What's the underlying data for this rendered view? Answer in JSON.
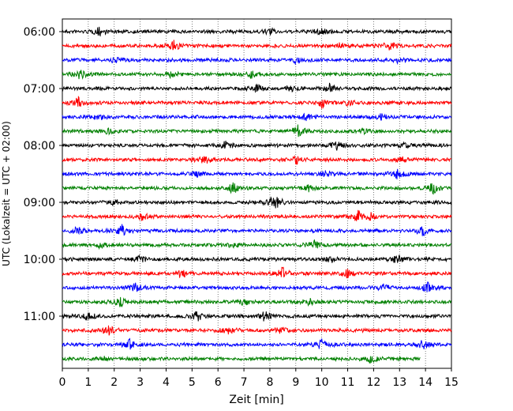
{
  "chart_data": {
    "type": "line",
    "title": "",
    "xlabel": "Zeit  [min]",
    "ylabel": "UTC (Lokalzeit = UTC + 02:00)",
    "xlim": [
      0,
      15
    ],
    "x_ticks": [
      0,
      1,
      2,
      3,
      4,
      5,
      6,
      7,
      8,
      9,
      10,
      11,
      12,
      13,
      14,
      15
    ],
    "y_tick_labels": [
      "06:00",
      "07:00",
      "08:00",
      "09:00",
      "10:00",
      "11:00"
    ],
    "grid": "vertical-dotted",
    "trace_interval_minutes": 15,
    "trace_end_minutes_last": 13.8,
    "colors": [
      "#000000",
      "#ff0000",
      "#0000ff",
      "#008000"
    ],
    "series": [
      {
        "start": "06:00",
        "color": "#000000",
        "events": [
          [
            1.4,
            0.6
          ],
          [
            8.0,
            0.5
          ],
          [
            10.0,
            0.6
          ]
        ]
      },
      {
        "start": "06:15",
        "color": "#ff0000",
        "events": [
          [
            4.3,
            0.8
          ],
          [
            10.7,
            0.5
          ],
          [
            12.6,
            0.7
          ]
        ]
      },
      {
        "start": "06:30",
        "color": "#0000ff",
        "events": [
          [
            2.0,
            0.4
          ],
          [
            9.0,
            0.4
          ],
          [
            13.0,
            0.5
          ]
        ]
      },
      {
        "start": "06:45",
        "color": "#008000",
        "events": [
          [
            0.7,
            0.8
          ],
          [
            4.2,
            0.4
          ],
          [
            7.3,
            0.5
          ]
        ]
      },
      {
        "start": "07:00",
        "color": "#000000",
        "events": [
          [
            7.5,
            0.6
          ],
          [
            8.8,
            0.5
          ],
          [
            10.3,
            0.6
          ]
        ]
      },
      {
        "start": "07:15",
        "color": "#ff0000",
        "events": [
          [
            0.6,
            0.8
          ],
          [
            10.0,
            0.7
          ],
          [
            11.0,
            0.4
          ]
        ]
      },
      {
        "start": "07:30",
        "color": "#0000ff",
        "events": [
          [
            1.5,
            0.5
          ],
          [
            9.4,
            0.5
          ],
          [
            12.3,
            0.4
          ]
        ]
      },
      {
        "start": "07:45",
        "color": "#008000",
        "events": [
          [
            1.8,
            0.4
          ],
          [
            9.1,
            0.9
          ],
          [
            11.6,
            0.4
          ]
        ]
      },
      {
        "start": "08:00",
        "color": "#000000",
        "events": [
          [
            6.3,
            0.6
          ],
          [
            10.6,
            0.7
          ],
          [
            13.2,
            0.4
          ]
        ]
      },
      {
        "start": "08:15",
        "color": "#ff0000",
        "events": [
          [
            5.5,
            0.6
          ],
          [
            9.0,
            0.6
          ],
          [
            13.1,
            0.4
          ]
        ]
      },
      {
        "start": "08:30",
        "color": "#0000ff",
        "events": [
          [
            5.2,
            0.4
          ],
          [
            10.2,
            0.4
          ],
          [
            12.9,
            0.9
          ]
        ]
      },
      {
        "start": "08:45",
        "color": "#008000",
        "events": [
          [
            6.6,
            0.9
          ],
          [
            14.3,
            0.8
          ],
          [
            9.5,
            0.4
          ]
        ]
      },
      {
        "start": "09:00",
        "color": "#000000",
        "events": [
          [
            2.0,
            0.4
          ],
          [
            8.0,
            0.6
          ],
          [
            8.3,
            0.9
          ]
        ]
      },
      {
        "start": "09:15",
        "color": "#ff0000",
        "events": [
          [
            3.1,
            0.6
          ],
          [
            11.4,
            0.9
          ],
          [
            11.9,
            0.5
          ]
        ]
      },
      {
        "start": "09:30",
        "color": "#0000ff",
        "events": [
          [
            0.6,
            0.6
          ],
          [
            2.3,
            0.8
          ],
          [
            13.9,
            0.7
          ]
        ]
      },
      {
        "start": "09:45",
        "color": "#008000",
        "events": [
          [
            1.5,
            0.4
          ],
          [
            6.5,
            0.4
          ],
          [
            9.7,
            0.7
          ]
        ]
      },
      {
        "start": "10:00",
        "color": "#000000",
        "events": [
          [
            3.0,
            0.5
          ],
          [
            10.4,
            0.4
          ],
          [
            12.9,
            0.7
          ]
        ]
      },
      {
        "start": "10:15",
        "color": "#ff0000",
        "events": [
          [
            4.6,
            0.7
          ],
          [
            8.5,
            0.9
          ],
          [
            11.0,
            0.6
          ]
        ]
      },
      {
        "start": "10:30",
        "color": "#0000ff",
        "events": [
          [
            2.8,
            0.6
          ],
          [
            12.4,
            0.5
          ],
          [
            14.1,
            0.8
          ]
        ]
      },
      {
        "start": "10:45",
        "color": "#008000",
        "events": [
          [
            2.2,
            0.8
          ],
          [
            7.0,
            0.6
          ],
          [
            9.5,
            0.5
          ]
        ]
      },
      {
        "start": "11:00",
        "color": "#000000",
        "events": [
          [
            1.0,
            0.6
          ],
          [
            5.2,
            0.8
          ],
          [
            7.8,
            0.8
          ]
        ]
      },
      {
        "start": "11:15",
        "color": "#ff0000",
        "events": [
          [
            1.8,
            0.6
          ],
          [
            6.4,
            0.6
          ],
          [
            8.4,
            0.6
          ]
        ]
      },
      {
        "start": "11:30",
        "color": "#0000ff",
        "events": [
          [
            2.6,
            0.8
          ],
          [
            10.0,
            0.8
          ],
          [
            13.9,
            0.7
          ]
        ]
      },
      {
        "start": "11:45",
        "color": "#008000",
        "events": [
          [
            1.5,
            0.4
          ],
          [
            11.9,
            0.6
          ]
        ]
      }
    ]
  }
}
